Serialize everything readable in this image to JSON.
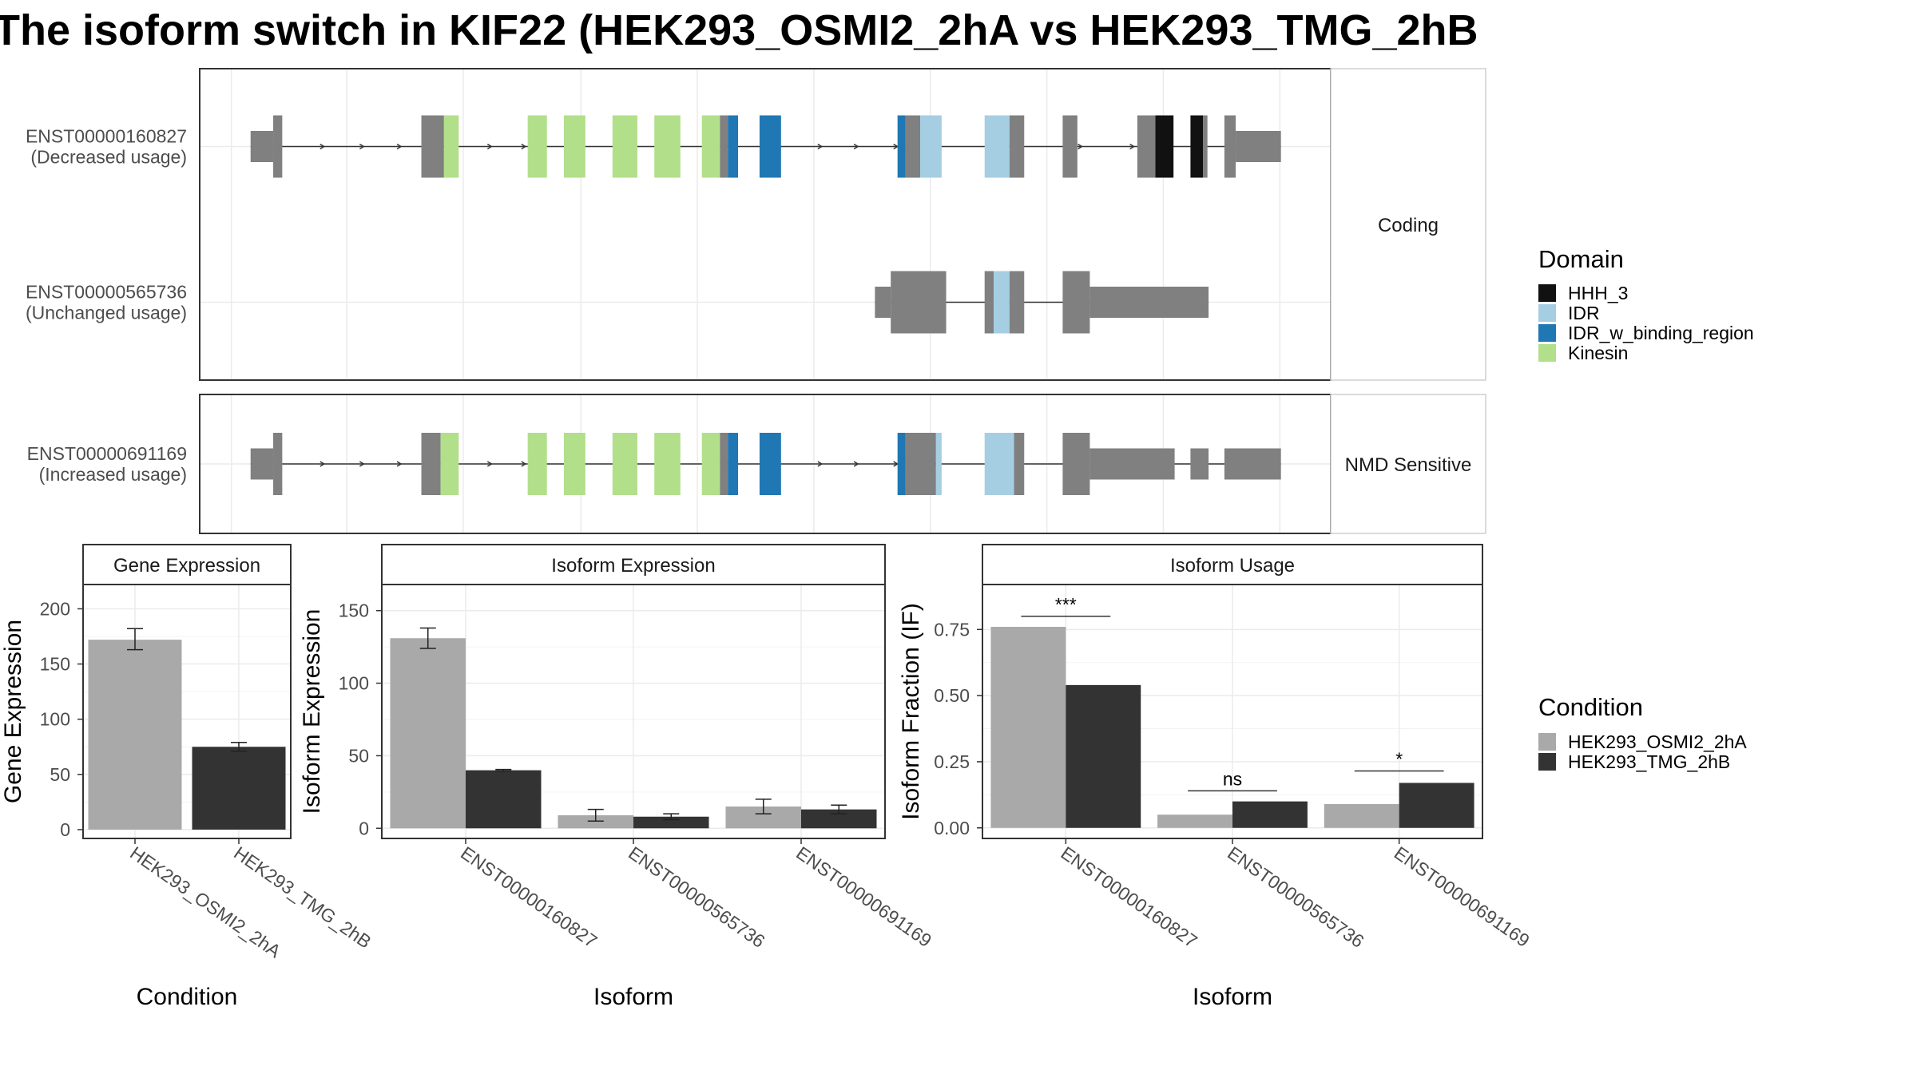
{
  "title": "The isoform switch in KIF22 (HEK293_OSMI2_2hA vs HEK293_TMG_2hB",
  "colors": {
    "HHH_3": "#111111",
    "IDR": "#a6cee3",
    "IDR_w_binding_region": "#1f78b4",
    "Kinesin": "#b2df8a",
    "exon": "#808080",
    "cond1": "#a9a9a9",
    "cond2": "#333333"
  },
  "transcript_panels": [
    {
      "strip": "Coding",
      "transcripts": [
        {
          "id": "ENST00000160827",
          "usage": "(Decreased usage)",
          "segments": [
            {
              "s": 0.045,
              "e": 0.065,
              "h": "utr",
              "c": "exon"
            },
            {
              "s": 0.065,
              "e": 0.073,
              "h": "cds",
              "c": "exon"
            },
            {
              "s": 0.196,
              "e": 0.216,
              "h": "cds",
              "c": "exon"
            },
            {
              "s": 0.216,
              "e": 0.229,
              "h": "cds",
              "c": "Kinesin"
            },
            {
              "s": 0.29,
              "e": 0.307,
              "h": "cds",
              "c": "Kinesin"
            },
            {
              "s": 0.322,
              "e": 0.341,
              "h": "cds",
              "c": "Kinesin"
            },
            {
              "s": 0.365,
              "e": 0.387,
              "h": "cds",
              "c": "Kinesin"
            },
            {
              "s": 0.402,
              "e": 0.425,
              "h": "cds",
              "c": "Kinesin"
            },
            {
              "s": 0.444,
              "e": 0.46,
              "h": "cds",
              "c": "Kinesin"
            },
            {
              "s": 0.46,
              "e": 0.467,
              "h": "cds",
              "c": "exon"
            },
            {
              "s": 0.467,
              "e": 0.476,
              "h": "cds",
              "c": "IDR_w_binding_region"
            },
            {
              "s": 0.495,
              "e": 0.514,
              "h": "cds",
              "c": "IDR_w_binding_region"
            },
            {
              "s": 0.617,
              "e": 0.624,
              "h": "cds",
              "c": "IDR_w_binding_region"
            },
            {
              "s": 0.624,
              "e": 0.637,
              "h": "cds",
              "c": "exon"
            },
            {
              "s": 0.637,
              "e": 0.656,
              "h": "cds",
              "c": "IDR"
            },
            {
              "s": 0.694,
              "e": 0.716,
              "h": "cds",
              "c": "IDR"
            },
            {
              "s": 0.716,
              "e": 0.729,
              "h": "cds",
              "c": "exon"
            },
            {
              "s": 0.763,
              "e": 0.776,
              "h": "cds",
              "c": "exon"
            },
            {
              "s": 0.829,
              "e": 0.845,
              "h": "cds",
              "c": "exon"
            },
            {
              "s": 0.845,
              "e": 0.861,
              "h": "cds",
              "c": "HHH_3"
            },
            {
              "s": 0.876,
              "e": 0.887,
              "h": "cds",
              "c": "HHH_3"
            },
            {
              "s": 0.887,
              "e": 0.891,
              "h": "cds",
              "c": "exon"
            },
            {
              "s": 0.906,
              "e": 0.916,
              "h": "cds",
              "c": "exon"
            },
            {
              "s": 0.916,
              "e": 0.956,
              "h": "utr",
              "c": "exon"
            }
          ],
          "arrows": [
            0.11,
            0.145,
            0.178,
            0.258,
            0.288,
            0.55,
            0.582,
            0.617,
            0.78,
            0.826
          ]
        },
        {
          "id": "ENST00000565736",
          "usage": "(Unchanged usage)",
          "segments": [
            {
              "s": 0.597,
              "e": 0.611,
              "h": "utr",
              "c": "exon"
            },
            {
              "s": 0.611,
              "e": 0.66,
              "h": "cds",
              "c": "exon"
            },
            {
              "s": 0.694,
              "e": 0.702,
              "h": "cds",
              "c": "exon"
            },
            {
              "s": 0.702,
              "e": 0.716,
              "h": "cds",
              "c": "IDR"
            },
            {
              "s": 0.716,
              "e": 0.729,
              "h": "cds",
              "c": "exon"
            },
            {
              "s": 0.763,
              "e": 0.787,
              "h": "cds",
              "c": "exon"
            },
            {
              "s": 0.787,
              "e": 0.892,
              "h": "utr",
              "c": "exon"
            }
          ],
          "arrows": []
        }
      ]
    },
    {
      "strip": "NMD Sensitive",
      "transcripts": [
        {
          "id": "ENST00000691169",
          "usage": "(Increased usage)",
          "segments": [
            {
              "s": 0.045,
              "e": 0.065,
              "h": "utr",
              "c": "exon"
            },
            {
              "s": 0.065,
              "e": 0.073,
              "h": "cds",
              "c": "exon"
            },
            {
              "s": 0.196,
              "e": 0.213,
              "h": "cds",
              "c": "exon"
            },
            {
              "s": 0.213,
              "e": 0.229,
              "h": "cds",
              "c": "Kinesin"
            },
            {
              "s": 0.29,
              "e": 0.307,
              "h": "cds",
              "c": "Kinesin"
            },
            {
              "s": 0.322,
              "e": 0.341,
              "h": "cds",
              "c": "Kinesin"
            },
            {
              "s": 0.365,
              "e": 0.387,
              "h": "cds",
              "c": "Kinesin"
            },
            {
              "s": 0.402,
              "e": 0.425,
              "h": "cds",
              "c": "Kinesin"
            },
            {
              "s": 0.444,
              "e": 0.46,
              "h": "cds",
              "c": "Kinesin"
            },
            {
              "s": 0.46,
              "e": 0.467,
              "h": "cds",
              "c": "exon"
            },
            {
              "s": 0.467,
              "e": 0.476,
              "h": "cds",
              "c": "IDR_w_binding_region"
            },
            {
              "s": 0.495,
              "e": 0.514,
              "h": "cds",
              "c": "IDR_w_binding_region"
            },
            {
              "s": 0.617,
              "e": 0.624,
              "h": "cds",
              "c": "IDR_w_binding_region"
            },
            {
              "s": 0.624,
              "e": 0.651,
              "h": "cds",
              "c": "exon"
            },
            {
              "s": 0.651,
              "e": 0.656,
              "h": "cds",
              "c": "IDR"
            },
            {
              "s": 0.694,
              "e": 0.72,
              "h": "cds",
              "c": "IDR"
            },
            {
              "s": 0.72,
              "e": 0.729,
              "h": "cds",
              "c": "exon"
            },
            {
              "s": 0.763,
              "e": 0.787,
              "h": "cds",
              "c": "exon"
            },
            {
              "s": 0.787,
              "e": 0.862,
              "h": "utr",
              "c": "exon"
            },
            {
              "s": 0.876,
              "e": 0.892,
              "h": "utr",
              "c": "exon"
            },
            {
              "s": 0.906,
              "e": 0.956,
              "h": "utr",
              "c": "exon"
            }
          ],
          "arrows": [
            0.11,
            0.145,
            0.178,
            0.258,
            0.288,
            0.55,
            0.582,
            0.617
          ]
        }
      ]
    }
  ],
  "legend_domain": {
    "title": "Domain",
    "items": [
      {
        "label": "HHH_3",
        "key": "HHH_3"
      },
      {
        "label": "IDR",
        "key": "IDR"
      },
      {
        "label": "IDR_w_binding_region",
        "key": "IDR_w_binding_region"
      },
      {
        "label": "Kinesin",
        "key": "Kinesin"
      }
    ]
  },
  "legend_condition": {
    "title": "Condition",
    "items": [
      {
        "label": "HEK293_OSMI2_2hA",
        "key": "cond1"
      },
      {
        "label": "HEK293_TMG_2hB",
        "key": "cond2"
      }
    ]
  },
  "chart_data": [
    {
      "type": "bar",
      "title": "Gene Expression",
      "xlabel": "Condition",
      "ylabel": "Gene Expression",
      "categories": [
        "HEK293_OSMI2_2hA",
        "HEK293_TMG_2hB"
      ],
      "values": [
        172,
        75
      ],
      "errors": [
        [
          163,
          182
        ],
        [
          71,
          79
        ]
      ],
      "ylim": [
        -8,
        222
      ],
      "yticks": [
        0,
        50,
        100,
        150,
        200
      ],
      "grid": true
    },
    {
      "type": "bar",
      "title": "Isoform Expression",
      "xlabel": "Isoform",
      "ylabel": "Isoform Expression",
      "categories": [
        "ENST00000160827",
        "ENST00000565736",
        "ENST00000691169"
      ],
      "series": [
        {
          "name": "HEK293_OSMI2_2hA",
          "values": [
            131,
            9,
            15
          ],
          "errors": [
            [
              124,
              138
            ],
            [
              5,
              13
            ],
            [
              10,
              20
            ]
          ]
        },
        {
          "name": "HEK293_TMG_2hB",
          "values": [
            40,
            8,
            13
          ],
          "errors": [
            [
              39.5,
              40.5
            ],
            [
              6,
              10
            ],
            [
              10,
              16
            ]
          ]
        }
      ],
      "ylim": [
        -7,
        168
      ],
      "yticks": [
        0,
        50,
        100,
        150
      ],
      "grid": true
    },
    {
      "type": "bar",
      "title": "Isoform Usage",
      "xlabel": "Isoform",
      "ylabel": "Isoform Fraction (IF)",
      "categories": [
        "ENST00000160827",
        "ENST00000565736",
        "ENST00000691169"
      ],
      "series": [
        {
          "name": "HEK293_OSMI2_2hA",
          "values": [
            0.76,
            0.05,
            0.09
          ]
        },
        {
          "name": "HEK293_TMG_2hB",
          "values": [
            0.54,
            0.1,
            0.17
          ]
        }
      ],
      "significance": [
        {
          "label": "***",
          "y": 0.8
        },
        {
          "label": "ns",
          "y": 0.14
        },
        {
          "label": "*",
          "y": 0.215
        }
      ],
      "ylim": [
        -0.04,
        0.92
      ],
      "yticks": [
        0.0,
        0.25,
        0.5,
        0.75
      ],
      "ytick_labels": [
        "0.00",
        "0.25",
        "0.50",
        "0.75"
      ],
      "grid": true
    }
  ]
}
